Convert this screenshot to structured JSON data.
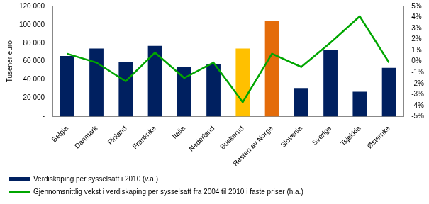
{
  "chart_data": {
    "type": "bar",
    "y_label": "Tusener euro",
    "categories": [
      "Belgia",
      "Danmark",
      "Finland",
      "Frankrike",
      "Italia",
      "Nederland",
      "Buskerud",
      "Resten av Norge",
      "Slovenia",
      "Sverige",
      "Tsjekkia",
      "Østerrike"
    ],
    "series": [
      {
        "name": "Verdiskaping per sysselsatt i 2010 (v.a.)",
        "type": "bar",
        "color": "#002060",
        "colors": [
          "#002060",
          "#002060",
          "#002060",
          "#002060",
          "#002060",
          "#002060",
          "#FFC000",
          "#E46C0A",
          "#002060",
          "#002060",
          "#002060",
          "#002060"
        ],
        "values": [
          66000,
          74000,
          59000,
          77000,
          54000,
          57000,
          74000,
          104000,
          31000,
          73000,
          27000,
          53000
        ]
      },
      {
        "name": "Gjennomsnittlig vekst i verdiskaping per sysselsatt fra 2004 til 2010 i faste priser (h.a.)",
        "type": "line",
        "color": "#00A600",
        "axis": "y2",
        "marker": "none",
        "values": [
          0.7,
          -0.1,
          -1.8,
          0.8,
          -1.5,
          -0.1,
          -3.7,
          0.7,
          -0.5,
          1.7,
          4.1,
          -0.1
        ]
      }
    ],
    "ylim": [
      0,
      120000
    ],
    "yticks": [
      {
        "value": 0,
        "label": "-"
      },
      {
        "value": 20000,
        "label": "20 000"
      },
      {
        "value": 40000,
        "label": "40 000"
      },
      {
        "value": 60000,
        "label": "60 000"
      },
      {
        "value": 80000,
        "label": "80 000"
      },
      {
        "value": 100000,
        "label": "100 000"
      },
      {
        "value": 120000,
        "label": "120 000"
      }
    ],
    "y2lim": [
      -5,
      5
    ],
    "y2ticks": [
      {
        "value": -5,
        "label": "-5%"
      },
      {
        "value": -4,
        "label": "-4%"
      },
      {
        "value": -3,
        "label": "-3%"
      },
      {
        "value": -2,
        "label": "-2%"
      },
      {
        "value": -1,
        "label": "-1%"
      },
      {
        "value": 0,
        "label": "0%"
      },
      {
        "value": 1,
        "label": "1%"
      },
      {
        "value": 2,
        "label": "2%"
      },
      {
        "value": 3,
        "label": "3%"
      },
      {
        "value": 4,
        "label": "4%"
      },
      {
        "value": 5,
        "label": "5%"
      }
    ],
    "grid": false,
    "legend": "bottom"
  }
}
